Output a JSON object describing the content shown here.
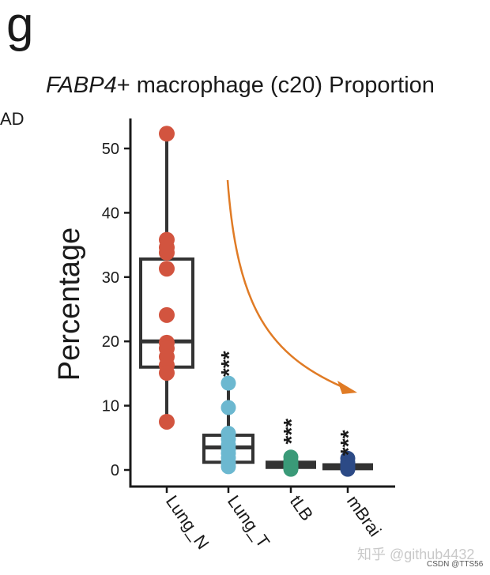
{
  "panel_letter": "g",
  "side_fragment": "AD",
  "watermark": "知乎 @github4432",
  "csdn": "CSDN @TTS56",
  "colors": {
    "Lung_N": "#d2543f",
    "Lung_T": "#6cb8d0",
    "tLB": "#3a9a78",
    "mBrain": "#2c4a86",
    "arrow": "#e07b25",
    "axis": "#1a1a1a",
    "box": "#333333"
  },
  "chart_data": {
    "type": "box",
    "title_italic": "FABP4",
    "title_rest": "+ macrophage (c20) Proportion",
    "ylabel": "Percentage",
    "xlabel": "",
    "ylim": [
      -2,
      54
    ],
    "yticks": [
      0,
      10,
      20,
      30,
      40,
      50
    ],
    "categories": [
      "Lung_N",
      "Lung_T",
      "tLB",
      "mBrain"
    ],
    "category_labels": [
      "Lung_N",
      "Lung_T",
      "tLB",
      "mBrai"
    ],
    "boxes": [
      {
        "name": "Lung_N",
        "min": 7.5,
        "q1": 16,
        "median": 20,
        "q3": 32.8,
        "max": 52.3
      },
      {
        "name": "Lung_T",
        "min": 0.3,
        "q1": 1.2,
        "median": 3.5,
        "q3": 5.4,
        "max": 13.5
      },
      {
        "name": "tLB",
        "min": 0,
        "q1": 0.4,
        "median": 0.8,
        "q3": 1.2,
        "max": 2
      },
      {
        "name": "mBrain",
        "min": 0,
        "q1": 0.2,
        "median": 0.4,
        "q3": 0.8,
        "max": 1.8
      }
    ],
    "points": [
      {
        "group": "Lung_N",
        "values": [
          52.3,
          35.8,
          34.6,
          33.8,
          31.3,
          24.1,
          19.8,
          18.9,
          17.6,
          16.3,
          15.1,
          7.5
        ]
      },
      {
        "group": "Lung_T",
        "values": [
          13.5,
          9.7,
          5.7,
          4.8,
          3.9,
          3.2,
          2.6,
          1.9,
          1.1,
          0.5
        ]
      },
      {
        "group": "tLB",
        "values": [
          2.0,
          1.4,
          1.0,
          0.6,
          0.3,
          0.1
        ]
      },
      {
        "group": "mBrain",
        "values": [
          1.8,
          1.2,
          0.8,
          0.4,
          0.1
        ]
      }
    ],
    "significance": [
      {
        "group": "Lung_T",
        "label": "***"
      },
      {
        "group": "tLB",
        "label": "***"
      },
      {
        "group": "mBrain",
        "label": "***"
      }
    ],
    "annotation": "decreasing trend arrow from Lung_T to mBrain"
  }
}
